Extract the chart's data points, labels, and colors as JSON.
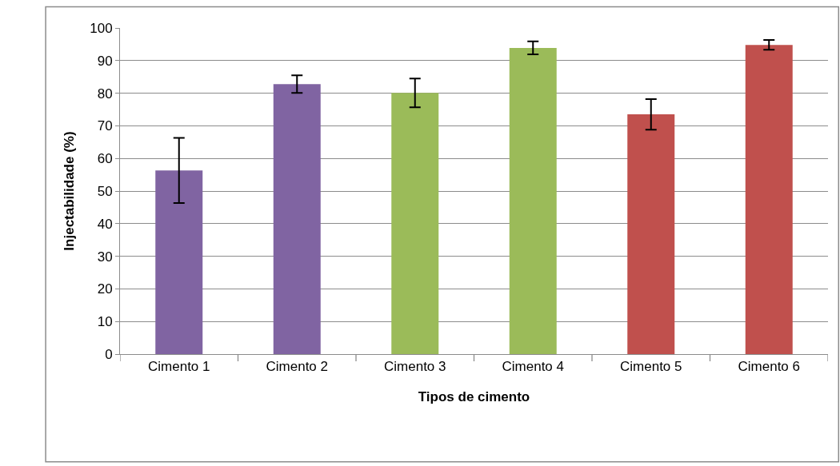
{
  "chart_data": {
    "type": "bar",
    "xlabel": "Tipos de cimento",
    "ylabel": "Injectabilidade (%)",
    "categories": [
      "Cimento 1",
      "Cimento 2",
      "Cimento 3",
      "Cimento 4",
      "Cimento 5",
      "Cimento 6"
    ],
    "values": [
      56.3,
      82.8,
      80.1,
      93.9,
      73.5,
      94.8
    ],
    "colors": [
      "#8064a2",
      "#8064a2",
      "#9bbb59",
      "#9bbb59",
      "#c0504d",
      "#c0504d"
    ],
    "errors": [
      10,
      2.7,
      4.4,
      2,
      4.7,
      1.5
    ],
    "ylim": [
      0,
      100
    ],
    "yticks": [
      0,
      10,
      20,
      30,
      40,
      50,
      60,
      70,
      80,
      90,
      100
    ],
    "grid": "y",
    "legend": false
  }
}
